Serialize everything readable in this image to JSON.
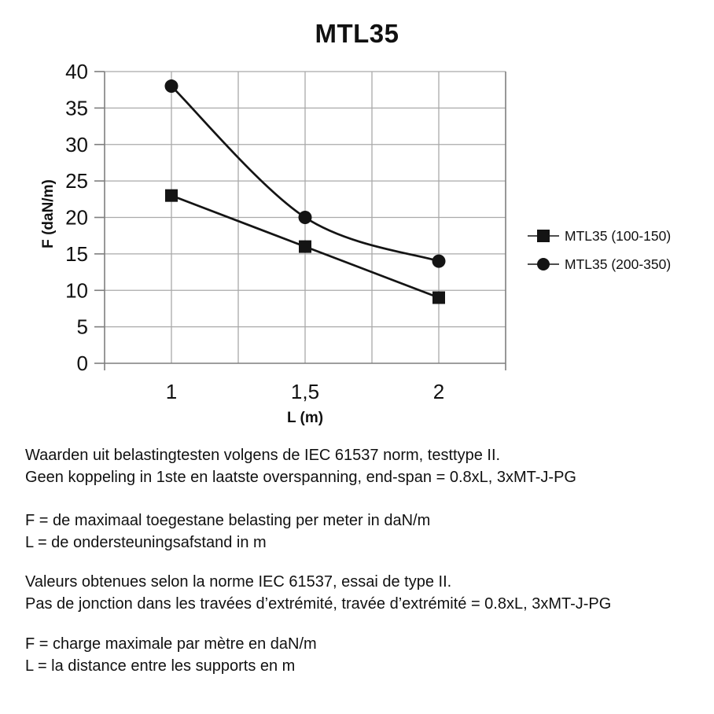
{
  "chart_data": {
    "type": "line",
    "title": "MTL35",
    "xlabel": "L (m)",
    "ylabel": "F (daN/m)",
    "x": [
      1,
      1.5,
      2
    ],
    "x_tick_labels": [
      "1",
      "1,5",
      "2"
    ],
    "series": [
      {
        "name": "MTL35 (100-150)",
        "marker": "square",
        "values": [
          23,
          16,
          9
        ]
      },
      {
        "name": "MTL35 (200-350)",
        "marker": "circle",
        "values": [
          38,
          20,
          14
        ]
      }
    ],
    "xlim": [
      0.75,
      2.25
    ],
    "x_grid_step": 0.25,
    "ylim": [
      0,
      40
    ],
    "y_major": 5,
    "grid": true,
    "line_smoothing": true,
    "legend_position": "right",
    "colors": {
      "line": "#141414",
      "grid": "#a9a9a9",
      "axis": "#7f7f7f",
      "text": "#111111"
    }
  },
  "notes": {
    "nl_test": [
      "Waarden uit belastingtesten volgens de IEC 61537 norm, testtype II.",
      "Geen koppeling in 1ste en laatste overspanning, end-span = 0.8xL, 3xMT-J-PG"
    ],
    "nl_defs": [
      "F = de maximaal toegestane belasting per meter in daN/m",
      "L = de ondersteuningsafstand in m"
    ],
    "fr_test": [
      "Valeurs obtenues selon la norme IEC 61537, essai de type II.",
      "Pas de jonction dans les travées d’extrémité, travée d’extrémité = 0.8xL, 3xMT-J-PG"
    ],
    "fr_defs": [
      "F = charge maximale par mètre en daN/m",
      "L = la distance entre les supports en m"
    ]
  }
}
